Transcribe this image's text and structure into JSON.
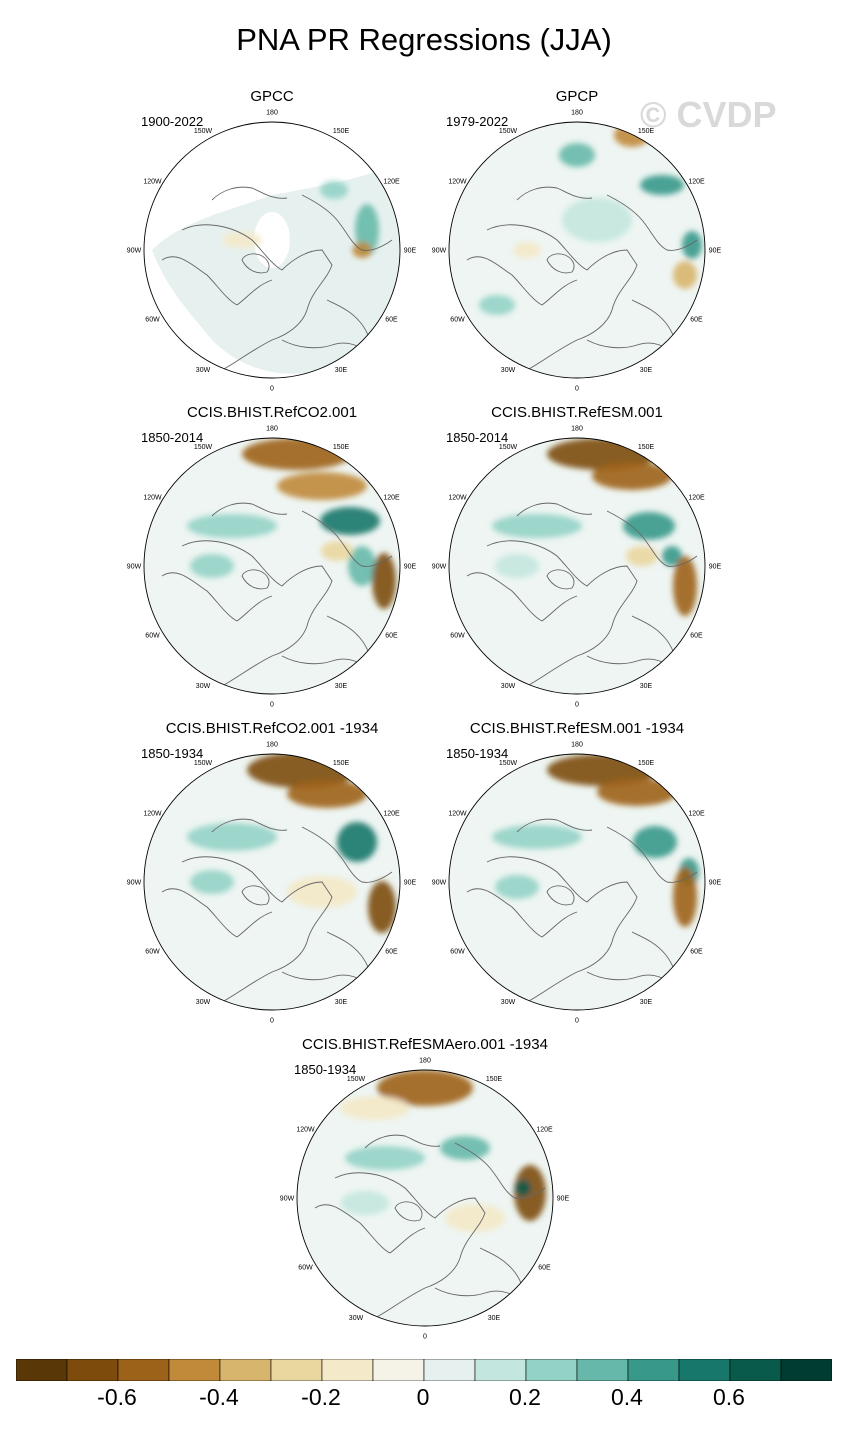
{
  "figure": {
    "title": "PNA PR Regressions (JJA)",
    "watermark": "© CVDP"
  },
  "longitude_labels": [
    "180",
    "150E",
    "120E",
    "90E",
    "60E",
    "30E",
    "0",
    "30W",
    "60W",
    "90W",
    "120W",
    "150W"
  ],
  "panels": [
    {
      "id": "gpcc",
      "title": "GPCC",
      "period": "1900-2022"
    },
    {
      "id": "gpcp",
      "title": "GPCP",
      "period": "1979-2022"
    },
    {
      "id": "refco2",
      "title": "CCIS.BHIST.RefCO2.001",
      "period": "1850-2014"
    },
    {
      "id": "refesm",
      "title": "CCIS.BHIST.RefESM.001",
      "period": "1850-2014"
    },
    {
      "id": "refco2-1934",
      "title": "CCIS.BHIST.RefCO2.001 -1934",
      "period": "1850-1934"
    },
    {
      "id": "refesm-1934",
      "title": "CCIS.BHIST.RefESM.001 -1934",
      "period": "1850-1934"
    },
    {
      "id": "refesmaero-1934",
      "title": "CCIS.BHIST.RefESMAero.001 -1934",
      "period": "1850-1934"
    }
  ],
  "colorbar": {
    "colors": [
      "#5a3706",
      "#7d4c0d",
      "#9d6219",
      "#c08a3a",
      "#d8b56d",
      "#ead7a0",
      "#f4e9c8",
      "#f5f2e8",
      "#e6f1ef",
      "#c3e7df",
      "#93d3c6",
      "#66b9aa",
      "#38998b",
      "#17776a",
      "#0a5a4c",
      "#003c30"
    ],
    "tick_labels": [
      "-0.6",
      "-0.4",
      "-0.2",
      "0",
      "0.2",
      "0.4",
      "0.6"
    ]
  }
}
